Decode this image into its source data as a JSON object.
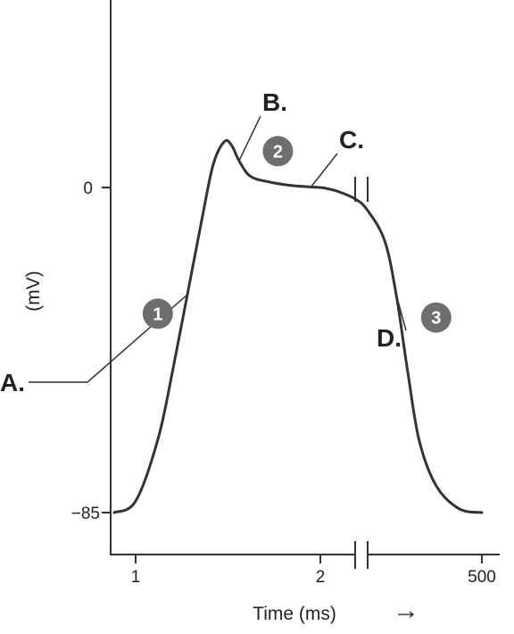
{
  "chart_data": {
    "type": "line",
    "title": "",
    "xlabel": "Time (ms)",
    "ylabel": "(mV)",
    "x_ticks": [
      "1",
      "2",
      "500"
    ],
    "y_ticks": [
      "0",
      "−85"
    ],
    "x_axis_break": true,
    "curve_break": true,
    "arrow": "→",
    "grid": false,
    "series": [
      {
        "points": [
          [
            0.88,
            -85.0
          ],
          [
            1.0,
            -82.0
          ],
          [
            1.12,
            -66.0
          ],
          [
            1.2,
            -48.0
          ],
          [
            1.28,
            -28.0
          ],
          [
            1.36,
            -8.0
          ],
          [
            1.42,
            6.0
          ],
          [
            1.48,
            12.0
          ],
          [
            1.52,
            11.0
          ],
          [
            1.56,
            7.0
          ],
          [
            1.62,
            3.0
          ],
          [
            1.72,
            1.5
          ],
          [
            1.85,
            0.5
          ],
          [
            2.0,
            0.0
          ],
          [
            2.18,
            -0.3
          ],
          [
            2.45,
            -1.0
          ],
          [
            2.9,
            -3.0
          ],
          [
            3.0,
            -6.0
          ],
          [
            3.06,
            -14.0
          ],
          [
            3.1,
            -28.0
          ],
          [
            3.14,
            -48.0
          ],
          [
            3.18,
            -66.0
          ],
          [
            3.24,
            -78.0
          ],
          [
            3.32,
            -84.0
          ],
          [
            3.4,
            -85.0
          ]
        ]
      }
    ],
    "annotations": [
      {
        "label": "A.",
        "at": [
          1.28,
          -28.0
        ],
        "anchor": "left"
      },
      {
        "label": "B.",
        "at": [
          1.56,
          7.0
        ],
        "anchor": "above-right"
      },
      {
        "label": "C.",
        "at": [
          1.95,
          0.2
        ],
        "anchor": "above-right"
      },
      {
        "label": "D.",
        "at": [
          3.1,
          -28.0
        ],
        "anchor": "left"
      }
    ],
    "phase_markers": [
      {
        "number": "1",
        "at": [
          1.12,
          -33.0
        ]
      },
      {
        "number": "2",
        "at": [
          1.77,
          9.5
        ]
      },
      {
        "number": "3",
        "at": [
          3.24,
          -34.0
        ]
      }
    ],
    "colors": {
      "curve": "#333333",
      "axis": "#333333",
      "marker_fill": "#6e6e6e",
      "marker_text": "#ffffff"
    }
  }
}
